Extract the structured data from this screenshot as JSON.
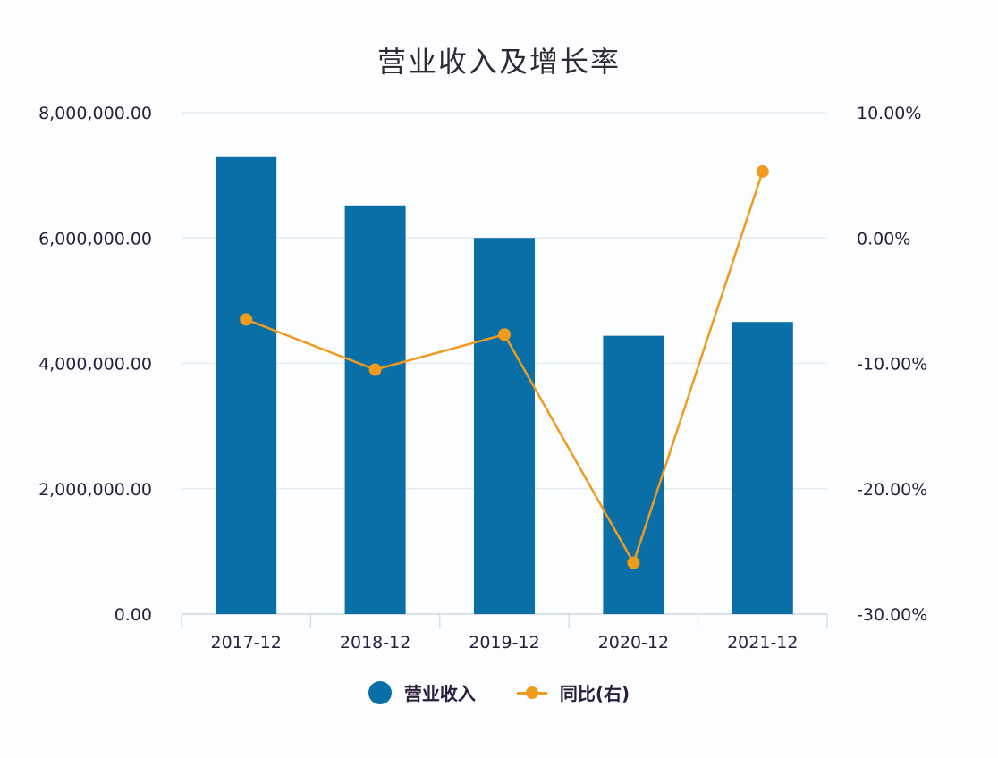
{
  "chart_data": {
    "type": "bar+line",
    "title": "营业收入及增长率",
    "categories": [
      "2017-12",
      "2018-12",
      "2019-12",
      "2020-12",
      "2021-12"
    ],
    "series": [
      {
        "name": "营业收入",
        "type": "bar",
        "axis": "left",
        "color": "#0a6fa6",
        "values": [
          7290000,
          6520000,
          6000000,
          4440000,
          4660000
        ]
      },
      {
        "name": "同比(右)",
        "type": "line",
        "axis": "right",
        "color": "#f09a1e",
        "values": [
          -6.5,
          -10.5,
          -7.7,
          -25.9,
          5.3
        ]
      }
    ],
    "left_axis": {
      "ticks": [
        "0.00",
        "2,000,000.00",
        "4,000,000.00",
        "6,000,000.00",
        "8,000,000.00"
      ],
      "ylim": [
        0,
        8000000
      ]
    },
    "right_axis": {
      "ticks": [
        "-30.00%",
        "-20.00%",
        "-10.00%",
        "0.00%",
        "10.00%"
      ],
      "ylim": [
        -30,
        10
      ]
    },
    "grid": true,
    "legend_position": "bottom"
  },
  "legend": {
    "bar_label": "营业收入",
    "line_label": "同比(右)"
  }
}
